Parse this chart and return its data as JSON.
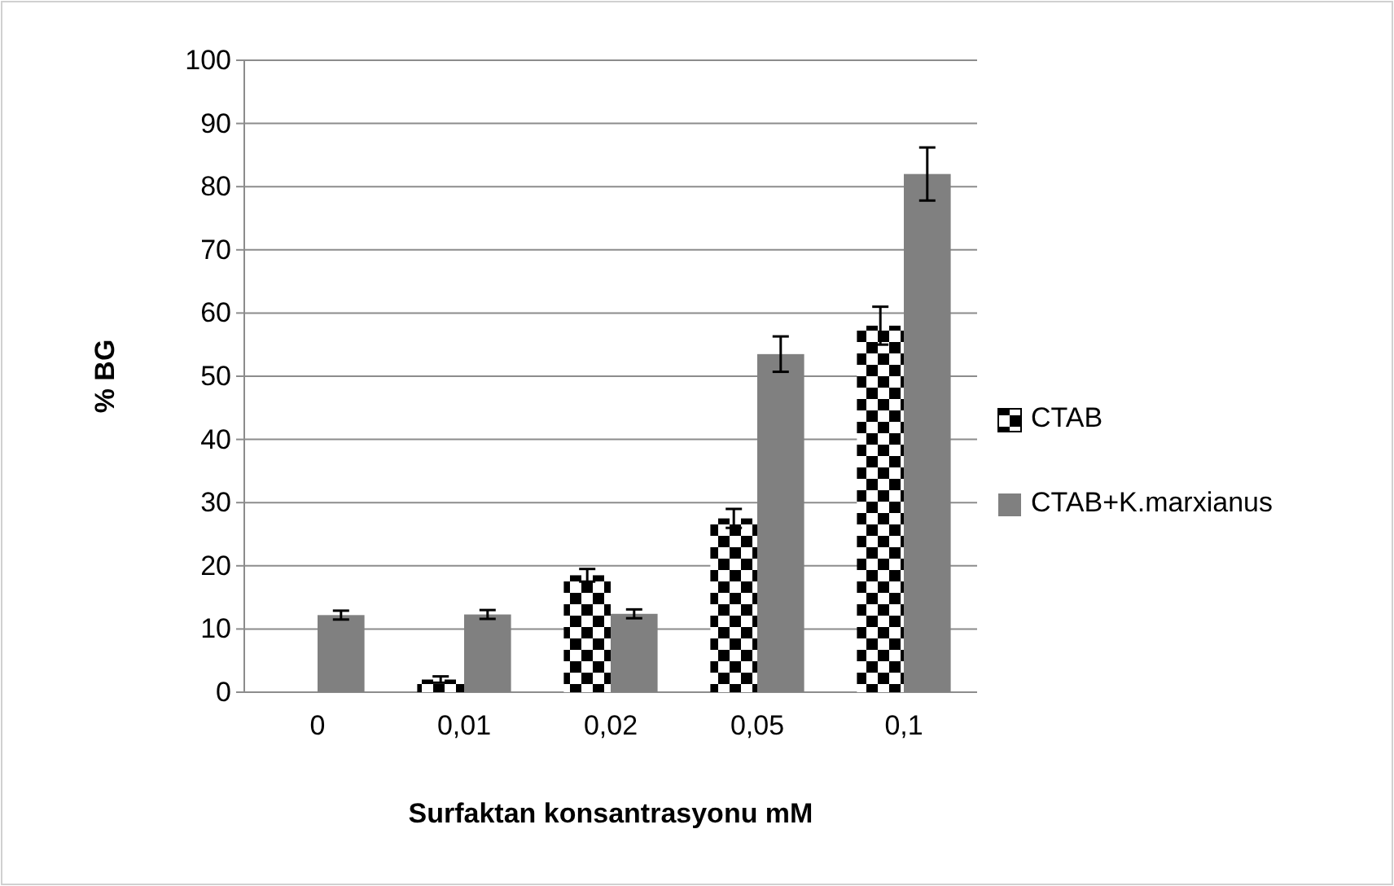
{
  "chart_data": {
    "type": "bar",
    "xlabel": "Surfaktan konsantrasyonu mM",
    "ylabel": "% BG",
    "categories": [
      "0",
      "0,01",
      "0,02",
      "0,05",
      "0,1"
    ],
    "series": [
      {
        "name": "CTAB",
        "color": "#000000",
        "values": [
          0,
          2,
          18.5,
          27.5,
          58
        ],
        "errors": [
          null,
          0.5,
          1,
          1.5,
          3
        ]
      },
      {
        "name": "CTAB+K.marxianus",
        "color": "#808080",
        "values": [
          12.2,
          12.3,
          12.4,
          53.5,
          82
        ],
        "errors": [
          0.7,
          0.7,
          0.7,
          2.8,
          4.2
        ]
      }
    ],
    "ylim": [
      0,
      100
    ],
    "yticks": [
      0,
      10,
      20,
      30,
      40,
      50,
      60,
      70,
      80,
      90,
      100
    ],
    "grid": "y",
    "legend": "right"
  }
}
